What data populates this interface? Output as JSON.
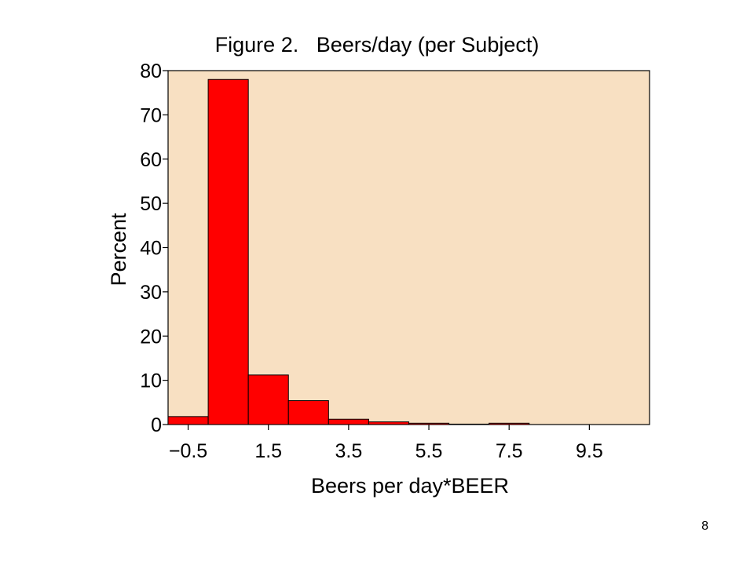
{
  "page_number": "8",
  "chart_data": {
    "type": "bar",
    "title": "Figure 2.   Beers/day (per Subject)",
    "xlabel": "Beers per day*BEER",
    "ylabel": "Percent",
    "ylim": [
      0,
      80
    ],
    "yticks": [
      0,
      10,
      20,
      30,
      40,
      50,
      60,
      70,
      80
    ],
    "xticks": [
      {
        "value": -0.5,
        "label": "−0.5"
      },
      {
        "value": 1.5,
        "label": "1.5"
      },
      {
        "value": 3.5,
        "label": "3.5"
      },
      {
        "value": 5.5,
        "label": "5.5"
      },
      {
        "value": 7.5,
        "label": "7.5"
      },
      {
        "value": 9.5,
        "label": "9.5"
      }
    ],
    "xlim": [
      -1.0,
      11.0
    ],
    "bin_width": 1,
    "bins": [
      {
        "center": -0.5,
        "value": 1.8
      },
      {
        "center": 0.5,
        "value": 78.0
      },
      {
        "center": 1.5,
        "value": 11.2
      },
      {
        "center": 2.5,
        "value": 5.4
      },
      {
        "center": 3.5,
        "value": 1.2
      },
      {
        "center": 4.5,
        "value": 0.6
      },
      {
        "center": 5.5,
        "value": 0.3
      },
      {
        "center": 6.5,
        "value": 0.1
      },
      {
        "center": 7.5,
        "value": 0.3
      }
    ],
    "colors": {
      "bar": "#ff0000",
      "plot_background": "#f8e0c2",
      "outline": "#000000"
    }
  }
}
